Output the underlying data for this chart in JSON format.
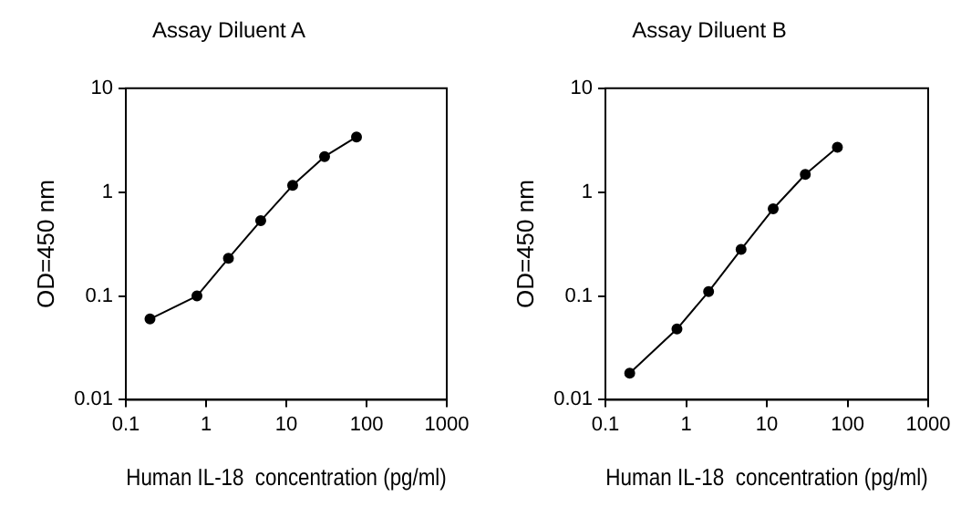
{
  "chart_data": [
    {
      "type": "line",
      "title": "Assay Diluent A",
      "xlabel": "Human IL-18  concentration (pg/ml)",
      "ylabel": "OD=450 nm",
      "log": "xy",
      "grid": false,
      "marker": "circle",
      "line_style": "solid",
      "legend": false,
      "x": [
        0.2,
        0.77,
        1.9,
        4.8,
        12,
        30,
        75
      ],
      "series": [
        {
          "color": "#000000",
          "values": [
            0.06,
            0.1,
            0.23,
            0.53,
            1.16,
            2.2,
            3.4
          ]
        }
      ],
      "xlim": [
        0.1,
        1000
      ],
      "xticks": [
        0.1,
        1,
        10,
        100,
        1000
      ],
      "ylim": [
        0.01,
        10
      ],
      "yticks": [
        0.01,
        0.1,
        1,
        10
      ]
    },
    {
      "type": "line",
      "title": "Assay Diluent B",
      "xlabel": "Human IL-18  concentration (pg/ml)",
      "ylabel": "OD=450 nm",
      "log": "xy",
      "grid": false,
      "marker": "circle",
      "line_style": "solid",
      "legend": false,
      "x": [
        0.2,
        0.77,
        1.9,
        4.8,
        12,
        30,
        75
      ],
      "series": [
        {
          "color": "#000000",
          "values": [
            0.018,
            0.048,
            0.11,
            0.28,
            0.69,
            1.48,
            2.7
          ]
        }
      ],
      "xlim": [
        0.1,
        1000
      ],
      "xticks": [
        0.1,
        1,
        10,
        100,
        1000
      ],
      "ylim": [
        0.01,
        10
      ],
      "yticks": [
        0.01,
        0.1,
        1,
        10
      ]
    }
  ]
}
